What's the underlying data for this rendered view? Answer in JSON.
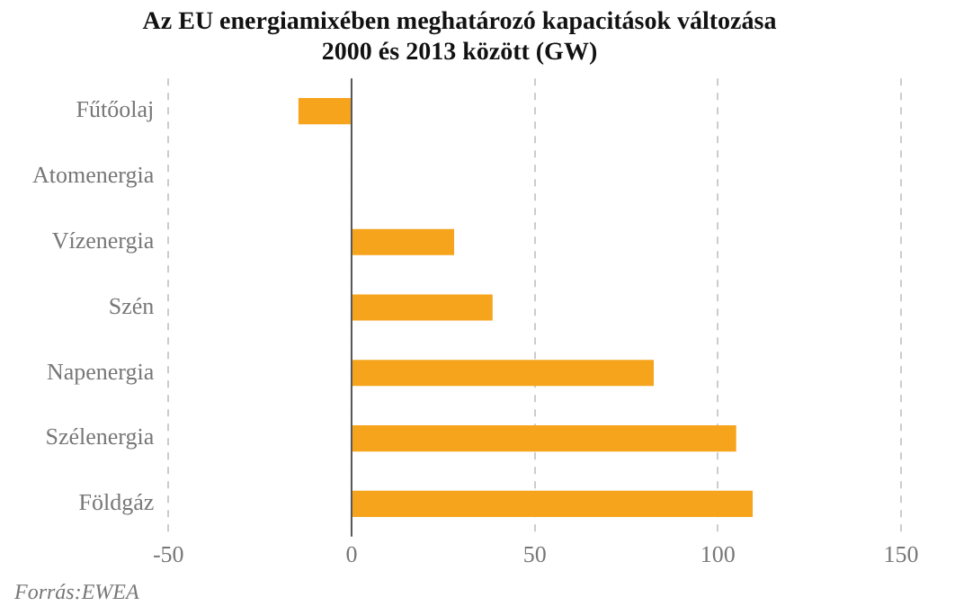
{
  "chart_data": {
    "type": "bar",
    "orientation": "horizontal",
    "title": [
      "Az EU energiamixében meghatározó kapacitások változása",
      "2000 és 2013 között (GW)"
    ],
    "categories": [
      "Fűtőolaj",
      "Atomenergia",
      "Vízenergia",
      "Szén",
      "Napenergia",
      "Szélenergia",
      "Földgáz"
    ],
    "values": [
      -14.5,
      0,
      28,
      38.5,
      82.5,
      105,
      109.5
    ],
    "color": "#f7a41d",
    "xlim": [
      -50,
      150
    ],
    "xticks": [
      -50,
      0,
      50,
      100,
      150
    ],
    "grid": "x",
    "legend": false,
    "annotations": [
      "Forrás:EWEA"
    ]
  }
}
